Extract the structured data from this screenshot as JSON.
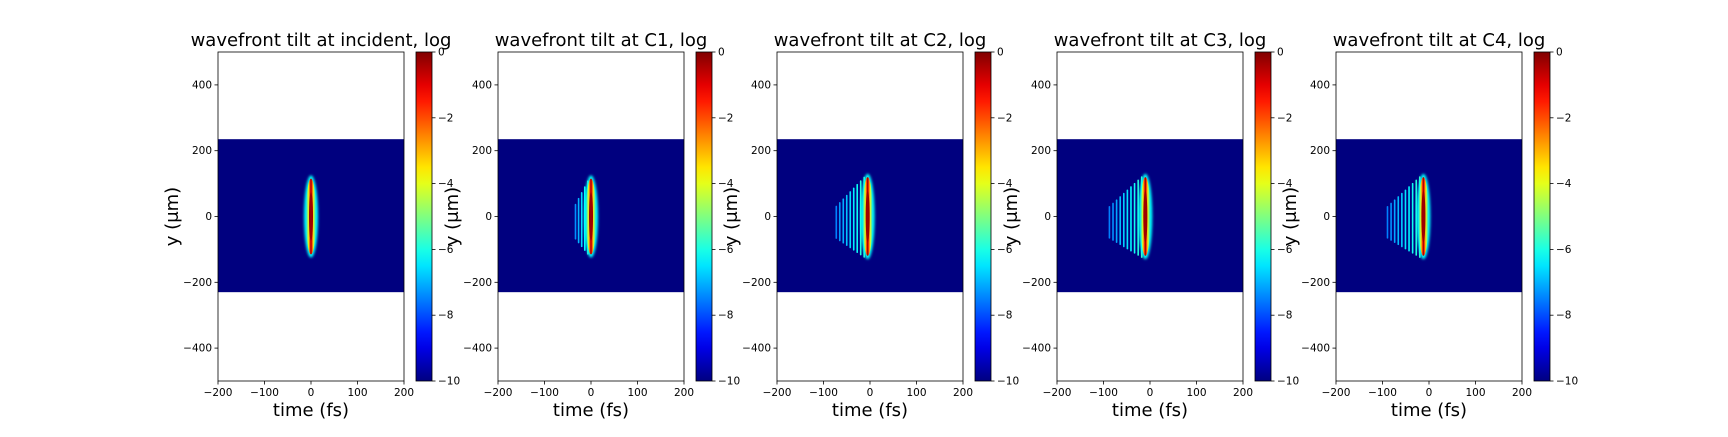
{
  "figure": {
    "colormap": "jet",
    "colors": {
      "background": "#ffffff",
      "field_low": "#00007f",
      "axis": "#000000"
    }
  },
  "chart_data": [
    {
      "type": "heatmap",
      "title": "wavefront tilt at incident, log",
      "xlabel": "time (fs)",
      "ylabel": "y ($\\mu$m)",
      "ylabel_display": "y (μm)",
      "xlim": [
        -200,
        200
      ],
      "ylim": [
        -500,
        500
      ],
      "xticks": [
        -200,
        -100,
        0,
        100,
        200
      ],
      "yticks": [
        -400,
        -200,
        0,
        200,
        400
      ],
      "data_extent_y": [
        -230,
        235
      ],
      "value_range": [
        -10,
        0
      ],
      "colorbar_ticks": [
        0,
        -2,
        -4,
        -6,
        -8,
        -10
      ],
      "pulse": {
        "center_time_fs": 0,
        "y_half_extent_um": 125,
        "tilt_extent_fs": 0,
        "tilt_fringes": 0
      }
    },
    {
      "type": "heatmap",
      "title": "wavefront tilt at C1, log",
      "xlabel": "time (fs)",
      "ylabel": "y ($\\mu$m)",
      "ylabel_display": "y (μm)",
      "xlim": [
        -200,
        200
      ],
      "ylim": [
        -500,
        500
      ],
      "xticks": [
        -200,
        -100,
        0,
        100,
        200
      ],
      "yticks": [
        -400,
        -200,
        0,
        200,
        400
      ],
      "data_extent_y": [
        -230,
        235
      ],
      "value_range": [
        -10,
        0
      ],
      "colorbar_ticks": [
        0,
        -2,
        -4,
        -6,
        -8,
        -10
      ],
      "pulse": {
        "center_time_fs": 0,
        "y_half_extent_um": 125,
        "tilt_extent_fs": 40,
        "tilt_fringes": 5
      }
    },
    {
      "type": "heatmap",
      "title": "wavefront tilt at C2, log",
      "xlabel": "time (fs)",
      "ylabel": "y ($\\mu$m)",
      "ylabel_display": "y (μm)",
      "xlim": [
        -200,
        200
      ],
      "ylim": [
        -500,
        500
      ],
      "xticks": [
        -200,
        -100,
        0,
        100,
        200
      ],
      "yticks": [
        -400,
        -200,
        0,
        200,
        400
      ],
      "data_extent_y": [
        -230,
        235
      ],
      "value_range": [
        -10,
        0
      ],
      "colorbar_ticks": [
        0,
        -2,
        -4,
        -6,
        -8,
        -10
      ],
      "pulse": {
        "center_time_fs": -5,
        "y_half_extent_um": 130,
        "tilt_extent_fs": 75,
        "tilt_fringes": 9
      }
    },
    {
      "type": "heatmap",
      "title": "wavefront tilt at C3, log",
      "xlabel": "time (fs)",
      "ylabel": "y ($\\mu$m)",
      "ylabel_display": "y (μm)",
      "xlim": [
        -200,
        200
      ],
      "ylim": [
        -500,
        500
      ],
      "xticks": [
        -200,
        -100,
        0,
        100,
        200
      ],
      "yticks": [
        -400,
        -200,
        0,
        200,
        400
      ],
      "data_extent_y": [
        -230,
        235
      ],
      "value_range": [
        -10,
        0
      ],
      "colorbar_ticks": [
        0,
        -2,
        -4,
        -6,
        -8,
        -10
      ],
      "pulse": {
        "center_time_fs": -10,
        "y_half_extent_um": 130,
        "tilt_extent_fs": 85,
        "tilt_fringes": 10
      }
    },
    {
      "type": "heatmap",
      "title": "wavefront tilt at C4, log",
      "xlabel": "time (fs)",
      "ylabel": "y ($\\mu$m)",
      "ylabel_display": "y (μm)",
      "xlim": [
        -200,
        200
      ],
      "ylim": [
        -500,
        500
      ],
      "xticks": [
        -200,
        -100,
        0,
        100,
        200
      ],
      "yticks": [
        -400,
        -200,
        0,
        200,
        400
      ],
      "data_extent_y": [
        -230,
        235
      ],
      "value_range": [
        -10,
        0
      ],
      "colorbar_ticks": [
        0,
        -2,
        -4,
        -6,
        -8,
        -10
      ],
      "pulse": {
        "center_time_fs": -12,
        "y_half_extent_um": 130,
        "tilt_extent_fs": 85,
        "tilt_fringes": 10
      }
    }
  ]
}
